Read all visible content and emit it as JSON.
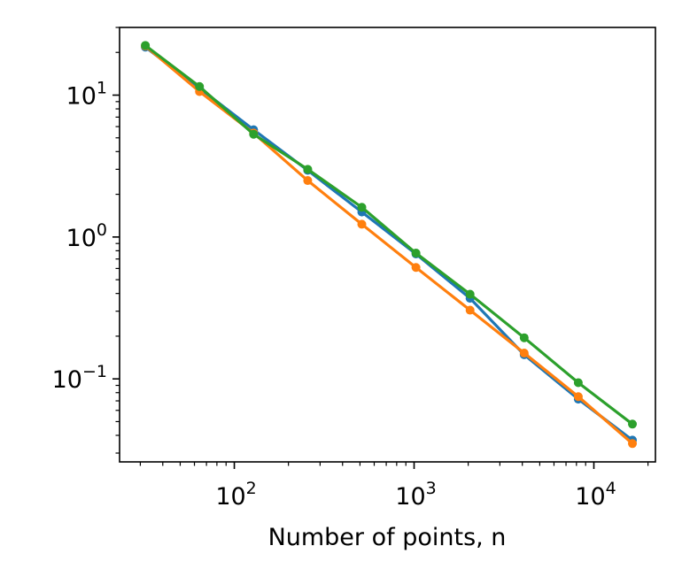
{
  "chart_data": {
    "type": "line",
    "title": "",
    "xlabel": "Number of points, n",
    "ylabel": "",
    "xscale": "log",
    "yscale": "log",
    "xlim": [
      23,
      22000
    ],
    "ylim": [
      0.026,
      30
    ],
    "grid": false,
    "legend": "none",
    "x_ticks": [
      {
        "value": 100,
        "base": "10",
        "exp": "2"
      },
      {
        "value": 1000,
        "base": "10",
        "exp": "3"
      },
      {
        "value": 10000,
        "base": "10",
        "exp": "4"
      }
    ],
    "y_ticks": [
      {
        "value": 0.1,
        "base": "10",
        "exp": "−1"
      },
      {
        "value": 1,
        "base": "10",
        "exp": "0"
      },
      {
        "value": 10,
        "base": "10",
        "exp": "1"
      }
    ],
    "x": [
      32,
      64,
      128,
      256,
      512,
      1024,
      2048,
      4096,
      8192,
      16384
    ],
    "series": [
      {
        "color": "#1f77b4",
        "values": [
          21.8,
          11.2,
          5.7,
          2.95,
          1.5,
          0.76,
          0.37,
          0.148,
          0.072,
          0.037
        ]
      },
      {
        "color": "#ff7f0e",
        "values": [
          22.2,
          10.6,
          5.4,
          2.5,
          1.23,
          0.61,
          0.305,
          0.152,
          0.075,
          0.035
        ]
      },
      {
        "color": "#2ca02c",
        "values": [
          22.4,
          11.5,
          5.3,
          3.0,
          1.62,
          0.77,
          0.395,
          0.195,
          0.094,
          0.048
        ]
      }
    ]
  }
}
